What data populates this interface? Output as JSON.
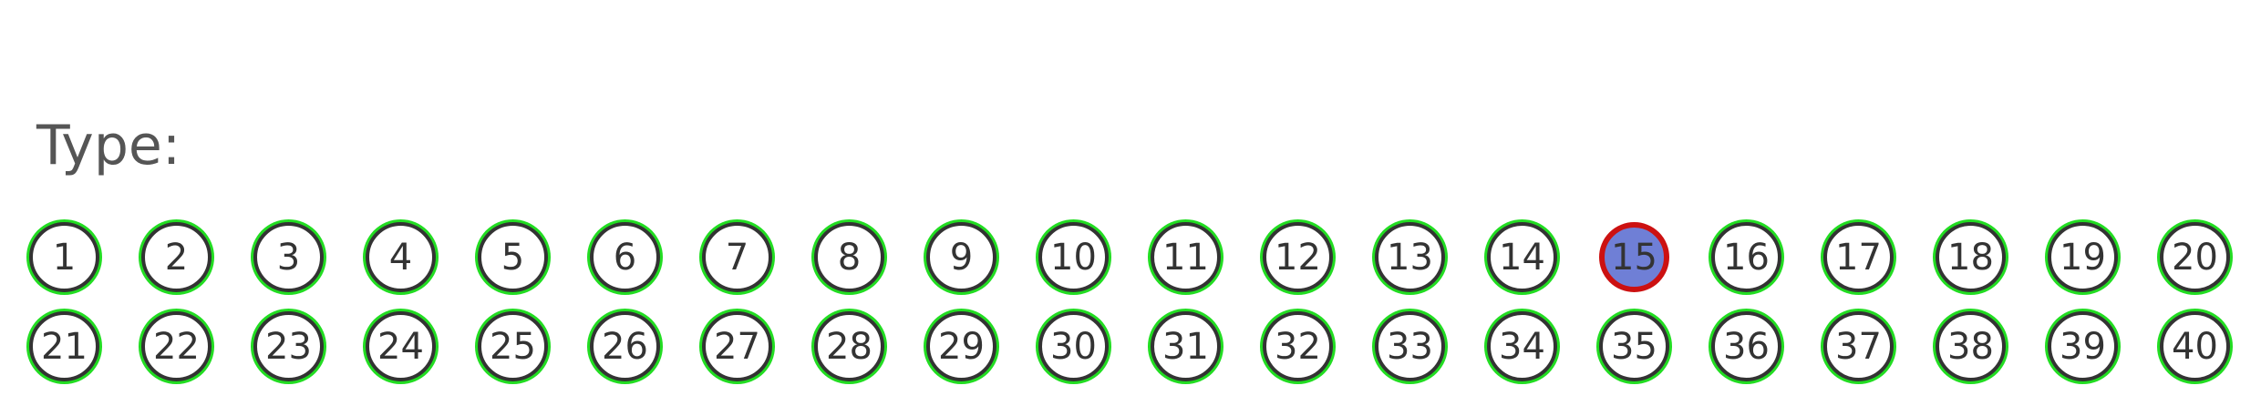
{
  "label": "Type:",
  "selected": "15",
  "colors": {
    "ring": "#22dd22",
    "selected_fill": "#6f7fd6",
    "selected_ring": "#cc1111"
  },
  "options": [
    "1",
    "2",
    "3",
    "4",
    "5",
    "6",
    "7",
    "8",
    "9",
    "10",
    "11",
    "12",
    "13",
    "14",
    "15",
    "16",
    "17",
    "18",
    "19",
    "20",
    "21",
    "22",
    "23",
    "24",
    "25",
    "26",
    "27",
    "28",
    "29",
    "30",
    "31",
    "32",
    "33",
    "34",
    "35",
    "36",
    "37",
    "38",
    "39",
    "40"
  ]
}
